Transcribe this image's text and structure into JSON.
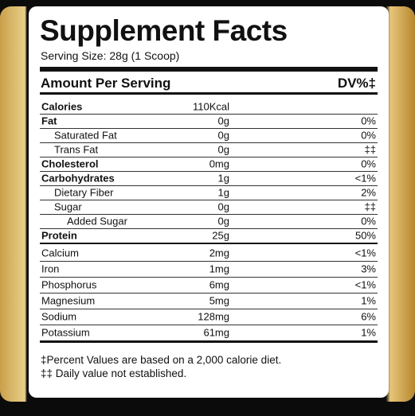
{
  "title": "Supplement Facts",
  "serving_size": "Serving Size: 28g (1 Scoop)",
  "header": {
    "amount": "Amount Per Serving",
    "dv": "DV%‡"
  },
  "nutrients": [
    {
      "label": "Calories",
      "amount": "110Kcal",
      "bold": true,
      "indent": 0
    },
    {
      "label": "Fat",
      "amount": "0g",
      "dv": "0%",
      "bold": true,
      "indent": 0
    },
    {
      "label": "Saturated Fat",
      "amount": "0g",
      "dv": "0%",
      "bold": false,
      "indent": 1
    },
    {
      "label": "Trans Fat",
      "amount": "0g",
      "dv": "‡‡",
      "bold": false,
      "indent": 1
    },
    {
      "label": "Cholesterol",
      "amount": "0mg",
      "dv": "0%",
      "bold": true,
      "indent": 0
    },
    {
      "label": "Carbohydrates",
      "amount": "1g",
      "dv": "<1%",
      "bold": true,
      "indent": 0
    },
    {
      "label": "Dietary Fiber",
      "amount": "1g",
      "dv": "2%",
      "bold": false,
      "indent": 1
    },
    {
      "label": "Sugar",
      "amount": "0g",
      "dv": "‡‡",
      "bold": false,
      "indent": 1
    },
    {
      "label": "Added Sugar",
      "amount": "0g",
      "dv": "0%",
      "bold": false,
      "indent": 2
    },
    {
      "label": "Protein",
      "amount": "25g",
      "dv": "50%",
      "bold": true,
      "indent": 0
    }
  ],
  "minerals": [
    {
      "label": "Calcium",
      "amount": "2mg",
      "dv": "<1%",
      "bold": false,
      "indent": 0
    },
    {
      "label": "Iron",
      "amount": "1mg",
      "dv": "3%",
      "bold": false,
      "indent": 0
    },
    {
      "label": "Phosphorus",
      "amount": "6mg",
      "dv": "<1%",
      "bold": false,
      "indent": 0
    },
    {
      "label": "Magnesium",
      "amount": "5mg",
      "dv": "1%",
      "bold": false,
      "indent": 0
    },
    {
      "label": "Sodium",
      "amount": "128mg",
      "dv": "6%",
      "bold": false,
      "indent": 0
    },
    {
      "label": "Potassium",
      "amount": "61mg",
      "dv": "1%",
      "bold": false,
      "indent": 0
    }
  ],
  "footnotes": [
    "‡Percent Values are based on a 2,000 calorie diet.",
    "‡‡ Daily value not established."
  ]
}
